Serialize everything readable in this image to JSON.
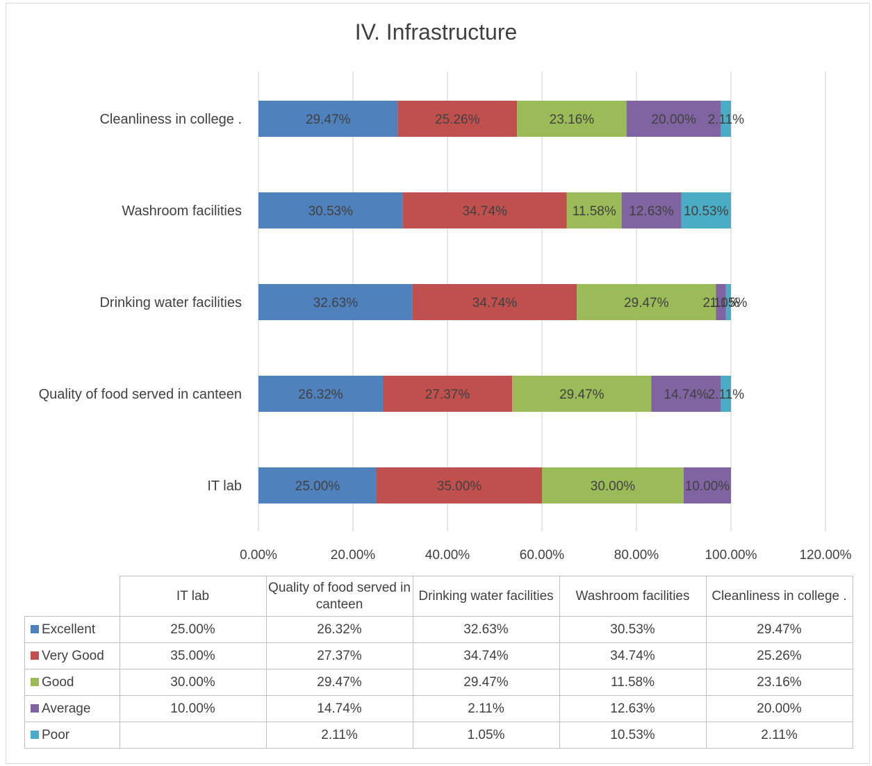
{
  "chart_data": {
    "type": "bar",
    "orientation": "horizontal",
    "stacked": true,
    "title": "IV. Infrastructure",
    "categories": [
      "IT lab",
      "Quality of food served in canteen",
      "Drinking water facilities",
      "Washroom facilities",
      "Cleanliness in college ."
    ],
    "table_headers": [
      "IT lab",
      "Quality of food served in canteen",
      "Drinking water facilities",
      "Washroom facilities",
      "Cleanliness in college ."
    ],
    "series": [
      {
        "name": "Excellent",
        "color": "#4f81bd",
        "values": [
          25.0,
          26.32,
          32.63,
          30.53,
          29.47
        ],
        "labels": [
          "25.00%",
          "26.32%",
          "32.63%",
          "30.53%",
          "29.47%"
        ]
      },
      {
        "name": "Very Good",
        "color": "#c0504d",
        "values": [
          35.0,
          27.37,
          34.74,
          34.74,
          25.26
        ],
        "labels": [
          "35.00%",
          "27.37%",
          "34.74%",
          "34.74%",
          "25.26%"
        ]
      },
      {
        "name": "Good",
        "color": "#9bbb59",
        "values": [
          30.0,
          29.47,
          29.47,
          11.58,
          23.16
        ],
        "labels": [
          "30.00%",
          "29.47%",
          "29.47%",
          "11.58%",
          "23.16%"
        ]
      },
      {
        "name": "Average",
        "color": "#8064a2",
        "values": [
          10.0,
          14.74,
          2.11,
          12.63,
          20.0
        ],
        "labels": [
          "10.00%",
          "14.74%",
          "2.11%",
          "12.63%",
          "20.00%"
        ]
      },
      {
        "name": "Poor",
        "color": "#4bacc6",
        "values": [
          null,
          2.11,
          1.05,
          10.53,
          2.11
        ],
        "labels": [
          "",
          "2.11%",
          "1.05%",
          "10.53%",
          "2.11%"
        ]
      }
    ],
    "x_ticks": [
      "0.00%",
      "20.00%",
      "40.00%",
      "60.00%",
      "80.00%",
      "100.00%",
      "120.00%"
    ],
    "xlim": [
      0,
      120
    ],
    "grid": true,
    "legend": "data-table"
  }
}
